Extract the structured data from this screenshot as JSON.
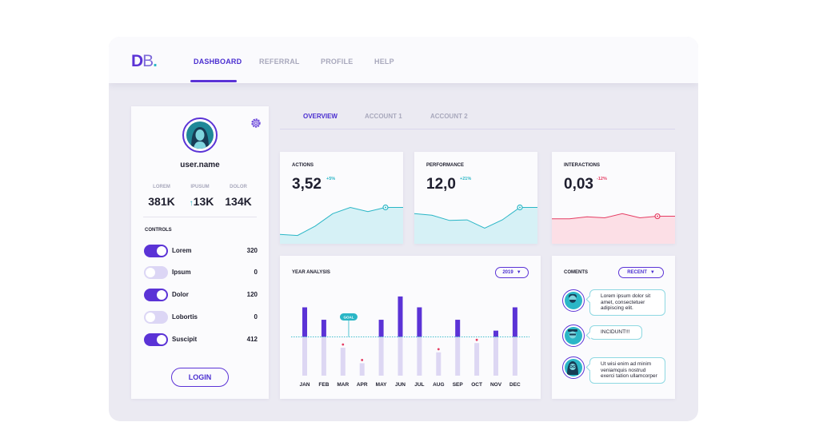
{
  "logo": {
    "d": "D",
    "b": "B",
    "dot": "."
  },
  "nav": {
    "items": [
      "DASHBOARD",
      "REFERRAL",
      "PROFILE",
      "HELP"
    ],
    "active": "DASHBOARD"
  },
  "profile": {
    "username": "user.name",
    "stats": [
      {
        "label": "LOREM",
        "value": "381K"
      },
      {
        "label": "IPUSUM",
        "value": "13K",
        "trend_icon": "↑"
      },
      {
        "label": "DOLOR",
        "value": "134K"
      }
    ],
    "controls_title": "CONTROLS",
    "controls": [
      {
        "label": "Lorem",
        "value": "320",
        "on": true
      },
      {
        "label": "Ipsum",
        "value": "0",
        "on": false
      },
      {
        "label": "Dolor",
        "value": "120",
        "on": true
      },
      {
        "label": "Lobortis",
        "value": "0",
        "on": false
      },
      {
        "label": "Suscipit",
        "value": "412",
        "on": true
      }
    ],
    "login_label": "LOGIN"
  },
  "tabs": {
    "items": [
      "OVERVIEW",
      "ACCOUNT 1",
      "ACCOUNT 2"
    ],
    "active": "OVERVIEW"
  },
  "metrics": [
    {
      "title": "ACTIONS",
      "value": "3,52",
      "delta": "+5%",
      "color": "#2ab6c6",
      "fill": "#d6f1f6",
      "trend": [
        0.18,
        0.16,
        0.34,
        0.58,
        0.7,
        0.62,
        0.7,
        0.7
      ]
    },
    {
      "title": "PERFORMANCE",
      "value": "12,0",
      "delta": "+21%",
      "color": "#2ab6c6",
      "fill": "#d6f1f6",
      "trend": [
        0.58,
        0.55,
        0.45,
        0.46,
        0.3,
        0.46,
        0.7,
        0.7
      ]
    },
    {
      "title": "INTERACTIONS",
      "value": "0,03",
      "delta": "-12%",
      "color": "#e53d63",
      "fill": "#fcdfe6",
      "trend": [
        0.48,
        0.48,
        0.52,
        0.5,
        0.58,
        0.5,
        0.53,
        0.53
      ]
    }
  ],
  "colors": {
    "accent": "#5b33d6",
    "teal": "#2ab6c6",
    "red": "#e53d63",
    "light_bar": "#ddd7f3"
  },
  "year_analysis": {
    "title": "YEAR ANALYSIS",
    "year_select": "2019",
    "goal_label": "GOAL"
  },
  "chart_data": {
    "type": "bar",
    "categories": [
      "JAN",
      "FEB",
      "MAR",
      "APR",
      "MAY",
      "JUN",
      "JUL",
      "AUG",
      "SEP",
      "OCT",
      "NOV",
      "DEC"
    ],
    "values": [
      88,
      72,
      36,
      16,
      72,
      102,
      88,
      30,
      72,
      42,
      58,
      88
    ],
    "goal": 50,
    "ylim": [
      0,
      105
    ],
    "grid": false,
    "annotations": [
      "GOAL"
    ]
  },
  "comments": {
    "title": "COMENTS",
    "filter": "RECENT",
    "items": [
      {
        "lines": [
          "Lorem ipsum dolor sit",
          "amet, consectetuer",
          "adipiscing elit."
        ],
        "avatar": "man-beard-avatar"
      },
      {
        "lines": [
          "INCIDUNT!!!"
        ],
        "avatar": "man-hat-avatar"
      },
      {
        "lines": [
          "Ut wisi enim ad minim",
          "veniamquis nostrud",
          "exerci tation ullamcorper"
        ],
        "avatar": "woman-glasses-avatar"
      }
    ]
  }
}
